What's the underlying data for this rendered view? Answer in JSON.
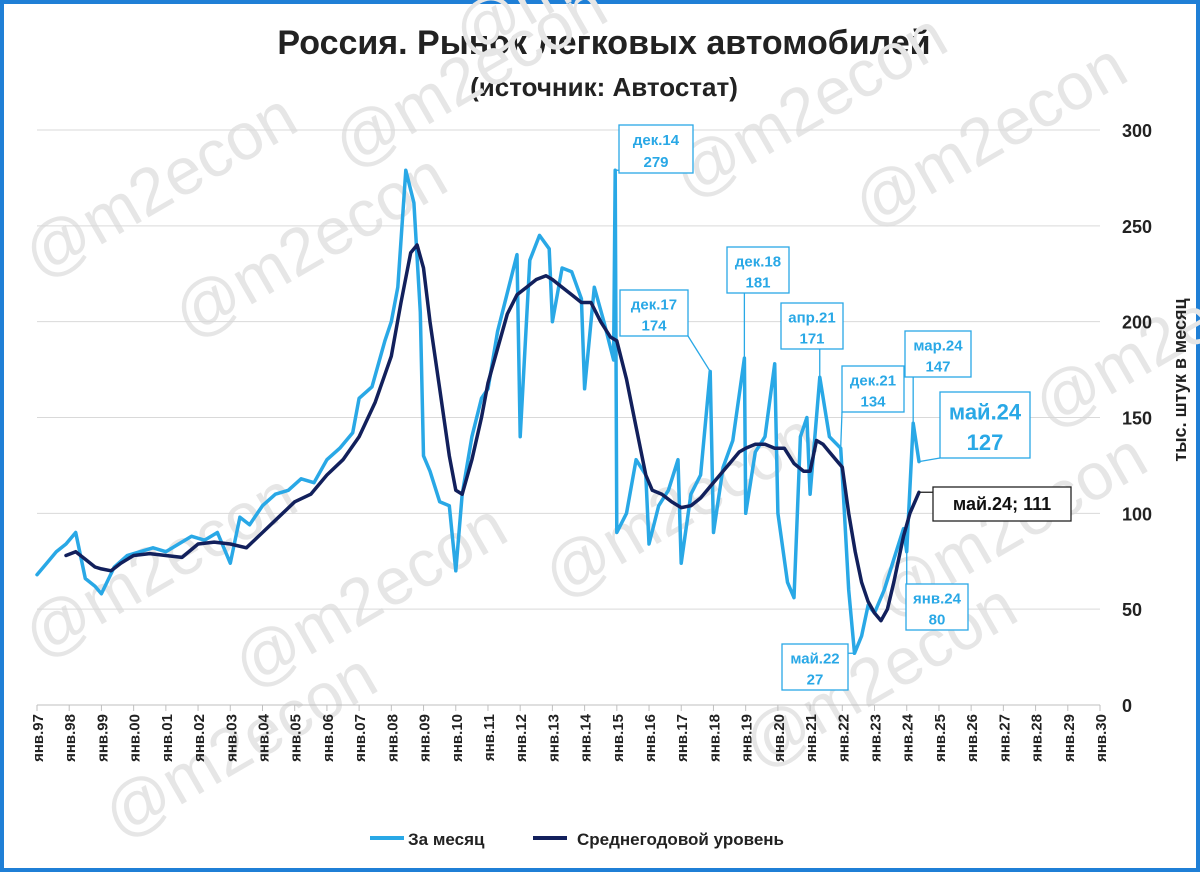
{
  "chart_data": {
    "type": "line",
    "title": "Россия. Рынок легковых автомобилей",
    "subtitle": "(источник: Автостат)",
    "ylabel": "тыс. штук в месяц",
    "ylim": [
      0,
      300
    ],
    "y_ticks": [
      0,
      50,
      100,
      150,
      200,
      250,
      300
    ],
    "y_axis_side": "right",
    "x_range": [
      1997.0,
      2030.0
    ],
    "x_ticks": [
      "янв.97",
      "янв.98",
      "янв.99",
      "янв.00",
      "янв.01",
      "янв.02",
      "янв.03",
      "янв.04",
      "янв.05",
      "янв.06",
      "янв.07",
      "янв.08",
      "янв.09",
      "янв.10",
      "янв.11",
      "янв.12",
      "янв.13",
      "янв.14",
      "янв.15",
      "янв.16",
      "янв.17",
      "янв.18",
      "янв.19",
      "янв.20",
      "янв.21",
      "янв.22",
      "янв.23",
      "янв.24",
      "янв.25",
      "янв.26",
      "янв.27",
      "янв.28",
      "янв.29",
      "янв.30"
    ],
    "grid": true,
    "legend_position": "bottom",
    "watermark": "@m2econ",
    "series": [
      {
        "name": "За месяц",
        "color": "#29a8e6",
        "width": 3.5,
        "points": [
          [
            1997.0,
            68
          ],
          [
            1997.3,
            74
          ],
          [
            1997.6,
            80
          ],
          [
            1997.9,
            84
          ],
          [
            1998.2,
            90
          ],
          [
            1998.5,
            66
          ],
          [
            1998.8,
            62
          ],
          [
            1999.0,
            58
          ],
          [
            1999.4,
            72
          ],
          [
            1999.8,
            78
          ],
          [
            2000.2,
            80
          ],
          [
            2000.6,
            82
          ],
          [
            2001.0,
            80
          ],
          [
            2001.4,
            84
          ],
          [
            2001.8,
            88
          ],
          [
            2002.2,
            86
          ],
          [
            2002.6,
            90
          ],
          [
            2003.0,
            74
          ],
          [
            2003.3,
            98
          ],
          [
            2003.6,
            94
          ],
          [
            2004.0,
            104
          ],
          [
            2004.4,
            110
          ],
          [
            2004.8,
            112
          ],
          [
            2005.2,
            118
          ],
          [
            2005.6,
            116
          ],
          [
            2006.0,
            128
          ],
          [
            2006.4,
            134
          ],
          [
            2006.8,
            142
          ],
          [
            2007.0,
            160
          ],
          [
            2007.4,
            166
          ],
          [
            2007.8,
            190
          ],
          [
            2008.0,
            200
          ],
          [
            2008.2,
            218
          ],
          [
            2008.45,
            279
          ],
          [
            2008.7,
            262
          ],
          [
            2008.9,
            205
          ],
          [
            2009.0,
            130
          ],
          [
            2009.2,
            122
          ],
          [
            2009.5,
            106
          ],
          [
            2009.8,
            104
          ],
          [
            2010.0,
            70
          ],
          [
            2010.2,
            110
          ],
          [
            2010.5,
            140
          ],
          [
            2010.8,
            160
          ],
          [
            2011.0,
            165
          ],
          [
            2011.3,
            195
          ],
          [
            2011.6,
            215
          ],
          [
            2011.9,
            235
          ],
          [
            2012.0,
            140
          ],
          [
            2012.3,
            232
          ],
          [
            2012.6,
            245
          ],
          [
            2012.9,
            238
          ],
          [
            2013.0,
            200
          ],
          [
            2013.3,
            228
          ],
          [
            2013.6,
            226
          ],
          [
            2013.9,
            212
          ],
          [
            2014.0,
            165
          ],
          [
            2014.3,
            218
          ],
          [
            2014.6,
            200
          ],
          [
            2014.9,
            180
          ],
          [
            2014.95,
            279
          ],
          [
            2015.0,
            90
          ],
          [
            2015.3,
            100
          ],
          [
            2015.6,
            128
          ],
          [
            2015.9,
            120
          ],
          [
            2016.0,
            84
          ],
          [
            2016.3,
            104
          ],
          [
            2016.6,
            112
          ],
          [
            2016.9,
            128
          ],
          [
            2017.0,
            74
          ],
          [
            2017.3,
            110
          ],
          [
            2017.6,
            120
          ],
          [
            2017.9,
            174
          ],
          [
            2018.0,
            90
          ],
          [
            2018.3,
            124
          ],
          [
            2018.6,
            138
          ],
          [
            2018.96,
            181
          ],
          [
            2019.0,
            100
          ],
          [
            2019.3,
            132
          ],
          [
            2019.6,
            140
          ],
          [
            2019.9,
            178
          ],
          [
            2020.0,
            100
          ],
          [
            2020.3,
            64
          ],
          [
            2020.5,
            56
          ],
          [
            2020.7,
            140
          ],
          [
            2020.9,
            150
          ],
          [
            2021.0,
            110
          ],
          [
            2021.3,
            171
          ],
          [
            2021.6,
            140
          ],
          [
            2021.95,
            134
          ],
          [
            2022.0,
            120
          ],
          [
            2022.2,
            60
          ],
          [
            2022.38,
            27
          ],
          [
            2022.6,
            36
          ],
          [
            2022.8,
            52
          ],
          [
            2023.0,
            48
          ],
          [
            2023.3,
            60
          ],
          [
            2023.6,
            76
          ],
          [
            2023.9,
            92
          ],
          [
            2024.0,
            80
          ],
          [
            2024.2,
            147
          ],
          [
            2024.38,
            127
          ]
        ]
      },
      {
        "name": "Среднегодовой уровень",
        "color": "#12205c",
        "width": 3.5,
        "points": [
          [
            1997.9,
            78
          ],
          [
            1998.2,
            80
          ],
          [
            1998.5,
            76
          ],
          [
            1998.8,
            72
          ],
          [
            1999.0,
            71
          ],
          [
            1999.3,
            70
          ],
          [
            1999.6,
            74
          ],
          [
            2000.0,
            78
          ],
          [
            2000.5,
            79
          ],
          [
            2001.0,
            78
          ],
          [
            2001.5,
            77
          ],
          [
            2002.0,
            84
          ],
          [
            2002.5,
            85
          ],
          [
            2003.0,
            84
          ],
          [
            2003.5,
            82
          ],
          [
            2004.0,
            90
          ],
          [
            2004.5,
            98
          ],
          [
            2005.0,
            106
          ],
          [
            2005.5,
            110
          ],
          [
            2006.0,
            120
          ],
          [
            2006.5,
            128
          ],
          [
            2007.0,
            140
          ],
          [
            2007.5,
            158
          ],
          [
            2008.0,
            182
          ],
          [
            2008.3,
            210
          ],
          [
            2008.6,
            236
          ],
          [
            2008.8,
            240
          ],
          [
            2009.0,
            228
          ],
          [
            2009.2,
            200
          ],
          [
            2009.5,
            165
          ],
          [
            2009.8,
            130
          ],
          [
            2010.0,
            112
          ],
          [
            2010.2,
            110
          ],
          [
            2010.5,
            128
          ],
          [
            2010.8,
            150
          ],
          [
            2011.0,
            168
          ],
          [
            2011.3,
            186
          ],
          [
            2011.6,
            204
          ],
          [
            2011.9,
            214
          ],
          [
            2012.2,
            218
          ],
          [
            2012.5,
            222
          ],
          [
            2012.8,
            224
          ],
          [
            2013.0,
            222
          ],
          [
            2013.3,
            218
          ],
          [
            2013.6,
            214
          ],
          [
            2013.9,
            210
          ],
          [
            2014.2,
            210
          ],
          [
            2014.5,
            200
          ],
          [
            2014.8,
            192
          ],
          [
            2015.0,
            190
          ],
          [
            2015.3,
            170
          ],
          [
            2015.6,
            145
          ],
          [
            2015.9,
            120
          ],
          [
            2016.1,
            112
          ],
          [
            2016.4,
            110
          ],
          [
            2016.7,
            106
          ],
          [
            2017.0,
            103
          ],
          [
            2017.3,
            104
          ],
          [
            2017.6,
            108
          ],
          [
            2017.9,
            114
          ],
          [
            2018.2,
            120
          ],
          [
            2018.5,
            126
          ],
          [
            2018.8,
            132
          ],
          [
            2019.0,
            134
          ],
          [
            2019.3,
            136
          ],
          [
            2019.6,
            136
          ],
          [
            2019.9,
            134
          ],
          [
            2020.2,
            134
          ],
          [
            2020.5,
            126
          ],
          [
            2020.8,
            122
          ],
          [
            2021.0,
            122
          ],
          [
            2021.2,
            138
          ],
          [
            2021.4,
            136
          ],
          [
            2021.6,
            132
          ],
          [
            2021.9,
            126
          ],
          [
            2022.0,
            124
          ],
          [
            2022.2,
            100
          ],
          [
            2022.4,
            80
          ],
          [
            2022.6,
            64
          ],
          [
            2022.8,
            54
          ],
          [
            2023.0,
            48
          ],
          [
            2023.2,
            44
          ],
          [
            2023.4,
            50
          ],
          [
            2023.6,
            64
          ],
          [
            2023.9,
            88
          ],
          [
            2024.1,
            100
          ],
          [
            2024.38,
            111
          ]
        ]
      }
    ],
    "annotations": [
      {
        "label": "дек.14",
        "value": "279",
        "x": 2014.95,
        "y": 279,
        "color": "#29a8e6"
      },
      {
        "label": "дек.17",
        "value": "174",
        "x": 2017.9,
        "y": 174,
        "color": "#29a8e6"
      },
      {
        "label": "дек.18",
        "value": "181",
        "x": 2018.96,
        "y": 181,
        "color": "#29a8e6"
      },
      {
        "label": "апр.21",
        "value": "171",
        "x": 2021.3,
        "y": 171,
        "color": "#29a8e6"
      },
      {
        "label": "дек.21",
        "value": "134",
        "x": 2021.95,
        "y": 134,
        "color": "#29a8e6"
      },
      {
        "label": "мар.24",
        "value": "147",
        "x": 2024.2,
        "y": 147,
        "color": "#29a8e6"
      },
      {
        "label": "май.24",
        "value": "127",
        "x": 2024.38,
        "y": 127,
        "color": "#29a8e6"
      },
      {
        "label": "май.22",
        "value": "27",
        "x": 2022.38,
        "y": 27,
        "color": "#29a8e6"
      },
      {
        "label": "янв.24",
        "value": "80",
        "x": 2024.0,
        "y": 80,
        "color": "#29a8e6"
      },
      {
        "label": "май.24; 111",
        "value": "",
        "x": 2024.38,
        "y": 111,
        "color": "#12205c"
      }
    ]
  }
}
